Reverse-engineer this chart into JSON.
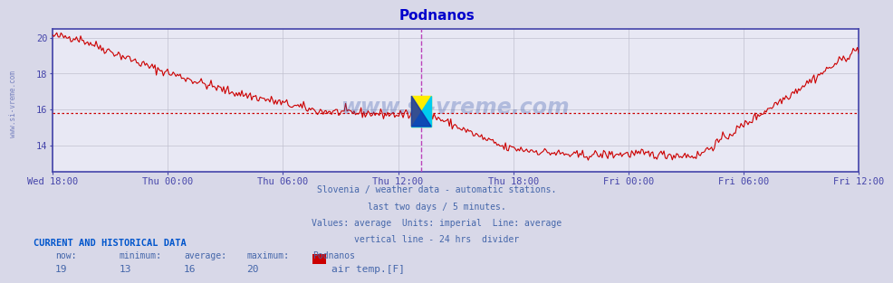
{
  "title": "Podnanos",
  "title_color": "#0000cc",
  "bg_color": "#d8d8e8",
  "plot_bg_color": "#e8e8f4",
  "grid_color": "#c0c0d0",
  "line_color": "#cc0000",
  "avg_line_color": "#cc0000",
  "avg_value": 15.8,
  "ylim": [
    12.5,
    20.5
  ],
  "yticks": [
    14,
    16,
    18,
    20
  ],
  "tick_color": "#4444aa",
  "xtick_labels": [
    "Wed 18:00",
    "Thu 00:00",
    "Thu 06:00",
    "Thu 12:00",
    "Thu 18:00",
    "Fri 00:00",
    "Fri 06:00",
    "Fri 12:00"
  ],
  "vline_color": "#bb44bb",
  "vline_pos": 0.458,
  "border_color": "#4444aa",
  "watermark": "www.si-vreme.com",
  "watermark_color": "#3355aa",
  "sub_text": [
    "Slovenia / weather data - automatic stations.",
    "last two days / 5 minutes.",
    "Values: average  Units: imperial  Line: average",
    "vertical line - 24 hrs  divider"
  ],
  "sub_text_color": "#4466aa",
  "info_label": "CURRENT AND HISTORICAL DATA",
  "info_label_color": "#0055cc",
  "col_headers": [
    "now:",
    "minimum:",
    "average:",
    "maximum:",
    "Podnanos"
  ],
  "col_values": [
    "19",
    "13",
    "16",
    "20"
  ],
  "legend_label": "air temp.[F]",
  "legend_color": "#cc0000",
  "sidebar_text": "www.si-vreme.com",
  "sidebar_color": "#4455aa"
}
